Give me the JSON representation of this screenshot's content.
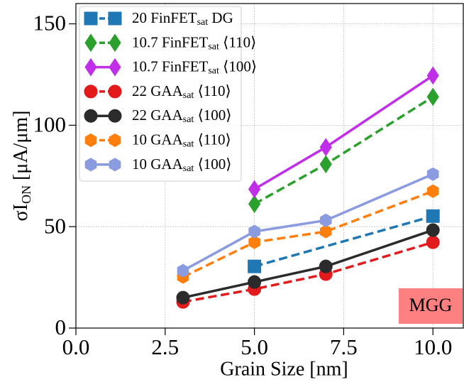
{
  "chart_data": {
    "type": "line",
    "xlabel": "Grain Size [nm]",
    "ylabel": {
      "text": "σI",
      "sub": "ON",
      "tail": " [μA/μm]"
    },
    "annotation": "MGG",
    "annotation_color": "#ff8080",
    "xlim": [
      0,
      10.87
    ],
    "ylim": [
      0,
      160
    ],
    "xticks": [
      {
        "value": 0,
        "label": "0.0"
      },
      2.5,
      {
        "value": 5,
        "label": "5.0"
      },
      7.5,
      {
        "value": 10,
        "label": "10.0"
      }
    ],
    "yticks": [
      0,
      50,
      100,
      150
    ],
    "grid": true,
    "legend": "upper left",
    "series": [
      {
        "name": "20 FinFET",
        "name_sub": "sat",
        "name_tail": " DG",
        "color": "#1f77b4",
        "dashed": true,
        "marker": "square",
        "x": [
          5,
          10
        ],
        "values": [
          30.4,
          55.2
        ]
      },
      {
        "name": "10.7 FinFET",
        "name_sub": "sat",
        "name_tail": " ⟨110⟩",
        "color": "#2ca02c",
        "dashed": true,
        "marker": "diamond",
        "x": [
          5,
          7,
          10
        ],
        "values": [
          61.2,
          80.8,
          114
        ]
      },
      {
        "name": "10.7 FinFET",
        "name_sub": "sat",
        "name_tail": " ⟨100⟩",
        "color": "#c12ee8",
        "dashed": false,
        "marker": "diamond",
        "x": [
          5,
          7,
          10
        ],
        "values": [
          68.5,
          89.2,
          124.5
        ]
      },
      {
        "name": "22 GAA",
        "name_sub": "sat",
        "name_tail": " ⟨110⟩",
        "color": "#e31a1c",
        "dashed": true,
        "marker": "circle",
        "x": [
          3,
          5,
          7,
          10
        ],
        "values": [
          12.9,
          19.2,
          26.6,
          42.3
        ]
      },
      {
        "name": "22 GAA",
        "name_sub": "sat",
        "name_tail": " ⟨100⟩",
        "color": "#2b2b2b",
        "dashed": false,
        "marker": "circle",
        "x": [
          3,
          5,
          7,
          10
        ],
        "values": [
          15,
          22.7,
          30.4,
          48.3
        ]
      },
      {
        "name": "10 GAA",
        "name_sub": "sat",
        "name_tail": " ⟨110⟩",
        "color": "#ff7f0e",
        "dashed": true,
        "marker": "hexagon",
        "x": [
          3,
          5,
          7,
          10
        ],
        "values": [
          25.2,
          42.3,
          47.6,
          67.5
        ]
      },
      {
        "name": "10 GAA",
        "name_sub": "sat",
        "name_tail": " ⟨100⟩",
        "color": "#8a9be0",
        "dashed": false,
        "marker": "hexagon",
        "x": [
          3,
          5,
          7,
          10
        ],
        "values": [
          28.3,
          47.6,
          53.1,
          75.9
        ]
      }
    ]
  }
}
